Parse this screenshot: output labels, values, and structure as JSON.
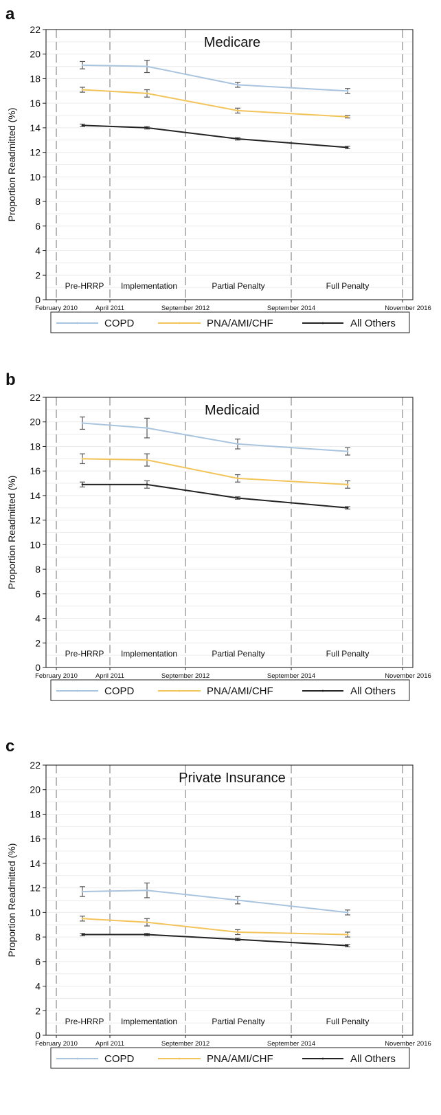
{
  "chart_data": [
    {
      "panel": "a",
      "type": "line",
      "title": "Medicare",
      "ylabel": "Proportion Readmitted (%)",
      "ylim": [
        0,
        22
      ],
      "yticks": [
        0,
        2,
        4,
        6,
        8,
        10,
        12,
        14,
        16,
        18,
        20,
        22
      ],
      "x_tick_labels": [
        "February 2010",
        "April 2011",
        "September 2012",
        "September 2014",
        "November 2016"
      ],
      "phase_labels": [
        "Pre-HRRP",
        "Implementation",
        "Partial Penalty",
        "Full Penalty"
      ],
      "categories": [
        "Pre-HRRP",
        "Implementation",
        "Partial Penalty",
        "Full Penalty"
      ],
      "series": [
        {
          "name": "COPD",
          "color": "#a9c4df",
          "values": [
            19.1,
            19.0,
            17.5,
            17.0
          ],
          "ci_low": [
            18.8,
            18.5,
            17.3,
            16.8
          ],
          "ci_high": [
            19.4,
            19.5,
            17.7,
            17.2
          ]
        },
        {
          "name": "PNA/AMI/CHF",
          "color": "#f2c45a",
          "values": [
            17.1,
            16.8,
            15.4,
            14.9
          ],
          "ci_low": [
            16.9,
            16.5,
            15.2,
            14.8
          ],
          "ci_high": [
            17.3,
            17.1,
            15.6,
            15.0
          ]
        },
        {
          "name": "All Others",
          "color": "#222222",
          "values": [
            14.2,
            14.0,
            13.1,
            12.4
          ],
          "ci_low": [
            14.1,
            13.9,
            13.0,
            12.3
          ],
          "ci_high": [
            14.3,
            14.1,
            13.2,
            12.5
          ]
        }
      ],
      "grid": true,
      "legend_position": "bottom"
    },
    {
      "panel": "b",
      "type": "line",
      "title": "Medicaid",
      "ylabel": "Proportion Readmitted (%)",
      "ylim": [
        0,
        22
      ],
      "yticks": [
        0,
        2,
        4,
        6,
        8,
        10,
        12,
        14,
        16,
        18,
        20,
        22
      ],
      "x_tick_labels": [
        "February 2010",
        "April 2011",
        "September 2012",
        "September 2014",
        "November 2016"
      ],
      "phase_labels": [
        "Pre-HRRP",
        "Implementation",
        "Partial Penalty",
        "Full Penalty"
      ],
      "categories": [
        "Pre-HRRP",
        "Implementation",
        "Partial Penalty",
        "Full Penalty"
      ],
      "series": [
        {
          "name": "COPD",
          "color": "#a9c4df",
          "values": [
            19.9,
            19.5,
            18.2,
            17.6
          ],
          "ci_low": [
            19.4,
            18.7,
            17.8,
            17.3
          ],
          "ci_high": [
            20.4,
            20.3,
            18.6,
            17.9
          ]
        },
        {
          "name": "PNA/AMI/CHF",
          "color": "#f2c45a",
          "values": [
            17.0,
            16.9,
            15.4,
            14.9
          ],
          "ci_low": [
            16.6,
            16.4,
            15.1,
            14.6
          ],
          "ci_high": [
            17.4,
            17.4,
            15.7,
            15.2
          ]
        },
        {
          "name": "All Others",
          "color": "#222222",
          "values": [
            14.9,
            14.9,
            13.8,
            13.0
          ],
          "ci_low": [
            14.7,
            14.6,
            13.7,
            12.9
          ],
          "ci_high": [
            15.1,
            15.2,
            13.9,
            13.1
          ]
        }
      ],
      "grid": true,
      "legend_position": "bottom"
    },
    {
      "panel": "c",
      "type": "line",
      "title": "Private Insurance",
      "ylabel": "Proportion Readmitted (%)",
      "ylim": [
        0,
        22
      ],
      "yticks": [
        0,
        2,
        4,
        6,
        8,
        10,
        12,
        14,
        16,
        18,
        20,
        22
      ],
      "x_tick_labels": [
        "February 2010",
        "April 2011",
        "September 2012",
        "September 2014",
        "November 2016"
      ],
      "phase_labels": [
        "Pre-HRRP",
        "Implementation",
        "Partial Penalty",
        "Full Penalty"
      ],
      "categories": [
        "Pre-HRRP",
        "Implementation",
        "Partial Penalty",
        "Full Penalty"
      ],
      "series": [
        {
          "name": "COPD",
          "color": "#a9c4df",
          "values": [
            11.7,
            11.8,
            11.0,
            10.0
          ],
          "ci_low": [
            11.3,
            11.2,
            10.7,
            9.8
          ],
          "ci_high": [
            12.1,
            12.4,
            11.3,
            10.2
          ]
        },
        {
          "name": "PNA/AMI/CHF",
          "color": "#f2c45a",
          "values": [
            9.5,
            9.2,
            8.4,
            8.2
          ],
          "ci_low": [
            9.3,
            8.9,
            8.2,
            8.0
          ],
          "ci_high": [
            9.7,
            9.5,
            8.6,
            8.4
          ]
        },
        {
          "name": "All Others",
          "color": "#222222",
          "values": [
            8.2,
            8.2,
            7.8,
            7.3
          ],
          "ci_low": [
            8.1,
            8.1,
            7.7,
            7.2
          ],
          "ci_high": [
            8.3,
            8.3,
            7.9,
            7.4
          ]
        }
      ],
      "grid": true,
      "legend_position": "bottom"
    }
  ]
}
